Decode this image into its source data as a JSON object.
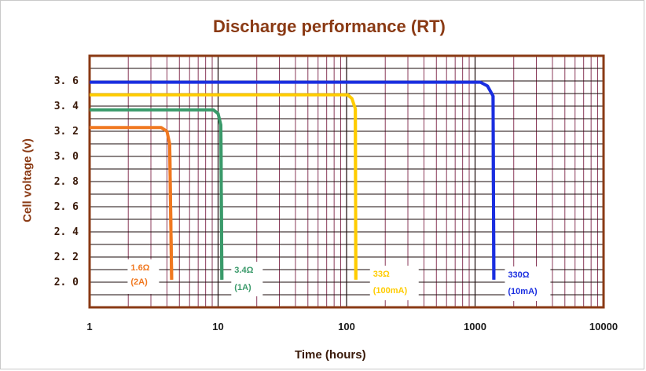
{
  "chart_data": {
    "type": "line",
    "title": "Discharge performance (RT)",
    "xlabel": "Time (hours)",
    "ylabel": "Cell voltage (v)",
    "x_scale": "log",
    "xlim": [
      1,
      10000
    ],
    "ylim": [
      1.8,
      3.8
    ],
    "x_ticks": [
      "1",
      "10",
      "100",
      "1000",
      "10000"
    ],
    "y_ticks": [
      "2.0",
      "2.2",
      "2.4",
      "2.6",
      "2.8",
      "3.0",
      "3.2",
      "3.4",
      "3.6"
    ],
    "grid": true,
    "series": [
      {
        "name": "1.6Ω (2A)",
        "color": "#f07820",
        "annotation": [
          "1.6Ω",
          "(2A)"
        ],
        "points": [
          [
            1,
            3.23
          ],
          [
            3.6,
            3.23
          ],
          [
            4.0,
            3.2
          ],
          [
            4.2,
            3.1
          ],
          [
            4.35,
            2.02
          ]
        ]
      },
      {
        "name": "3.4Ω (1A)",
        "color": "#3a9a6a",
        "annotation": [
          "3.4Ω",
          "(1A)"
        ],
        "points": [
          [
            1,
            3.37
          ],
          [
            9.2,
            3.37
          ],
          [
            10.0,
            3.34
          ],
          [
            10.5,
            3.25
          ],
          [
            10.7,
            2.02
          ]
        ]
      },
      {
        "name": "33Ω (100mA)",
        "color": "#ffcc00",
        "annotation": [
          "33Ω",
          "(100mA)"
        ],
        "points": [
          [
            1,
            3.49
          ],
          [
            102,
            3.49
          ],
          [
            110,
            3.46
          ],
          [
            117,
            3.38
          ],
          [
            118,
            2.02
          ]
        ]
      },
      {
        "name": "330Ω (10mA)",
        "color": "#1a2ee0",
        "annotation": [
          "330Ω",
          "(10mA)"
        ],
        "points": [
          [
            1,
            3.59
          ],
          [
            1100,
            3.59
          ],
          [
            1250,
            3.56
          ],
          [
            1380,
            3.48
          ],
          [
            1400,
            2.02
          ]
        ]
      }
    ]
  },
  "colors": {
    "title": "#8a3a14",
    "axis_frame": "#8a3a14",
    "grid_major": "#1a0a0a",
    "grid_minor": "#8a3a5a"
  }
}
